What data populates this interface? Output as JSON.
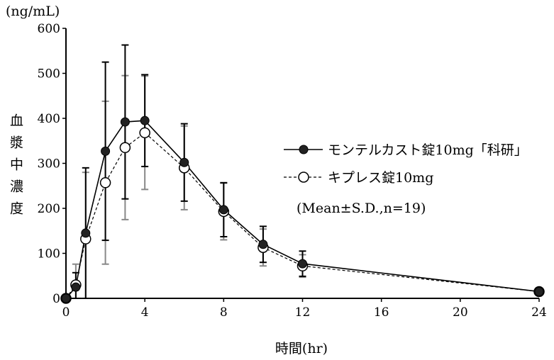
{
  "chart_data": {
    "type": "line",
    "title": "",
    "xlabel": "時間(hr)",
    "ylabel": "血漿中濃度",
    "yunit": "(ng/mL)",
    "xlim": [
      0,
      24
    ],
    "ylim": [
      0,
      600
    ],
    "xticks": [
      0,
      4,
      8,
      12,
      16,
      20,
      24
    ],
    "yticks": [
      0,
      100,
      200,
      300,
      400,
      500,
      600
    ],
    "grid": false,
    "legend_position": "right",
    "note": "(Mean±S.D.,n=19)",
    "series": [
      {
        "name": "モンテルカスト錠10mg「科研」",
        "marker": "filled-circle",
        "line": "solid",
        "color": "#000000",
        "errcolor": "#000000",
        "x": [
          0,
          0.5,
          1,
          2,
          3,
          4,
          6,
          8,
          10,
          12,
          24
        ],
        "values": [
          0,
          25,
          145,
          327,
          392,
          395,
          302,
          197,
          120,
          77,
          15
        ],
        "sd": [
          0,
          32,
          145,
          198,
          171,
          102,
          86,
          60,
          40,
          28,
          0
        ]
      },
      {
        "name": "キプレス錠10mg",
        "marker": "open-circle",
        "line": "dashed",
        "color": "#000000",
        "errcolor": "#888888",
        "x": [
          0,
          0.5,
          1,
          2,
          3,
          4,
          6,
          8,
          10,
          12,
          24
        ],
        "values": [
          0,
          30,
          132,
          257,
          335,
          368,
          290,
          193,
          113,
          72,
          15
        ],
        "sd": [
          0,
          46,
          148,
          181,
          160,
          126,
          93,
          63,
          41,
          25,
          0
        ]
      }
    ]
  }
}
